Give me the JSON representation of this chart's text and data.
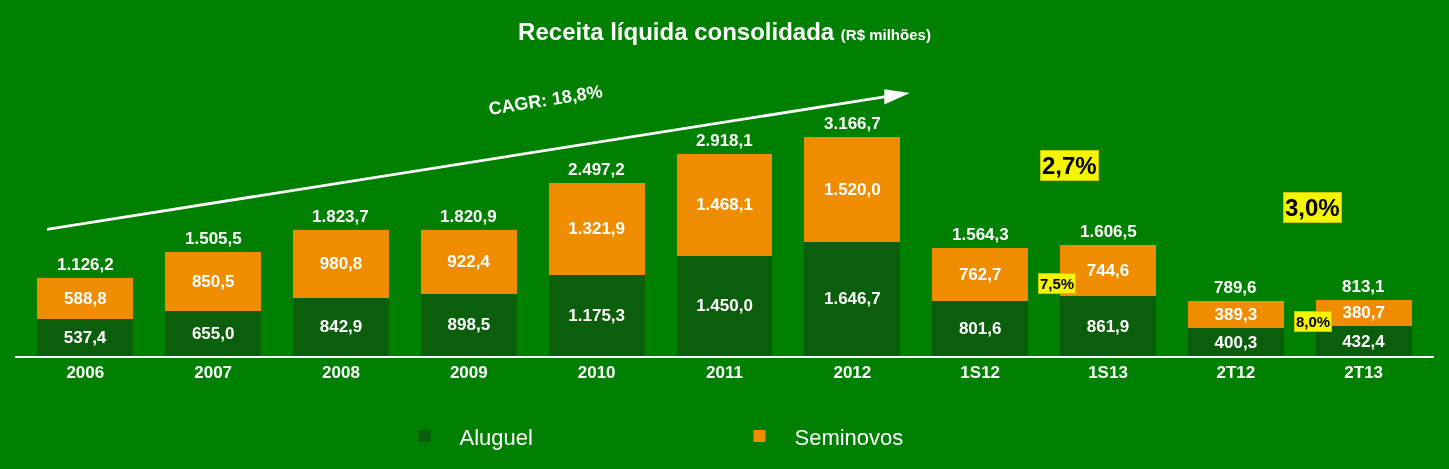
{
  "chart_data": {
    "type": "bar",
    "stacked": true,
    "title": "Receita líquida consolidada",
    "subtitle": "(R$ milhões)",
    "categories": [
      "2006",
      "2007",
      "2008",
      "2009",
      "2010",
      "2011",
      "2012",
      "1S12",
      "1S13",
      "2T12",
      "2T13"
    ],
    "series": [
      {
        "name": "Aluguel",
        "color": "#0b5e0b",
        "values": [
          537.4,
          655.0,
          842.9,
          898.5,
          1175.3,
          1450.0,
          1646.7,
          801.6,
          861.9,
          400.3,
          432.4
        ],
        "value_labels": [
          "537,4",
          "655,0",
          "842,9",
          "898,5",
          "1.175,3",
          "1.450,0",
          "1.646,7",
          "801,6",
          "861,9",
          "400,3",
          "432,4"
        ]
      },
      {
        "name": "Seminovos",
        "color": "#f08c00",
        "values": [
          588.8,
          850.5,
          980.8,
          922.4,
          1321.9,
          1468.1,
          1520.0,
          762.7,
          744.6,
          389.3,
          380.7
        ],
        "value_labels": [
          "588,8",
          "850,5",
          "980,8",
          "922,4",
          "1.321,9",
          "1.468,1",
          "1.520,0",
          "762,7",
          "744,6",
          "389,3",
          "380,7"
        ]
      }
    ],
    "totals": [
      "1.126,2",
      "1.505,5",
      "1.823,7",
      "1.820,9",
      "2.497,2",
      "2.918,1",
      "3.166,7",
      "1.564,3",
      "1.606,5",
      "789,6",
      "813,1"
    ],
    "annotations": [
      "CAGR: 18,8%",
      "2,7%",
      "7,5%",
      "3,0%",
      "8,0%"
    ],
    "legend": "bottom"
  }
}
